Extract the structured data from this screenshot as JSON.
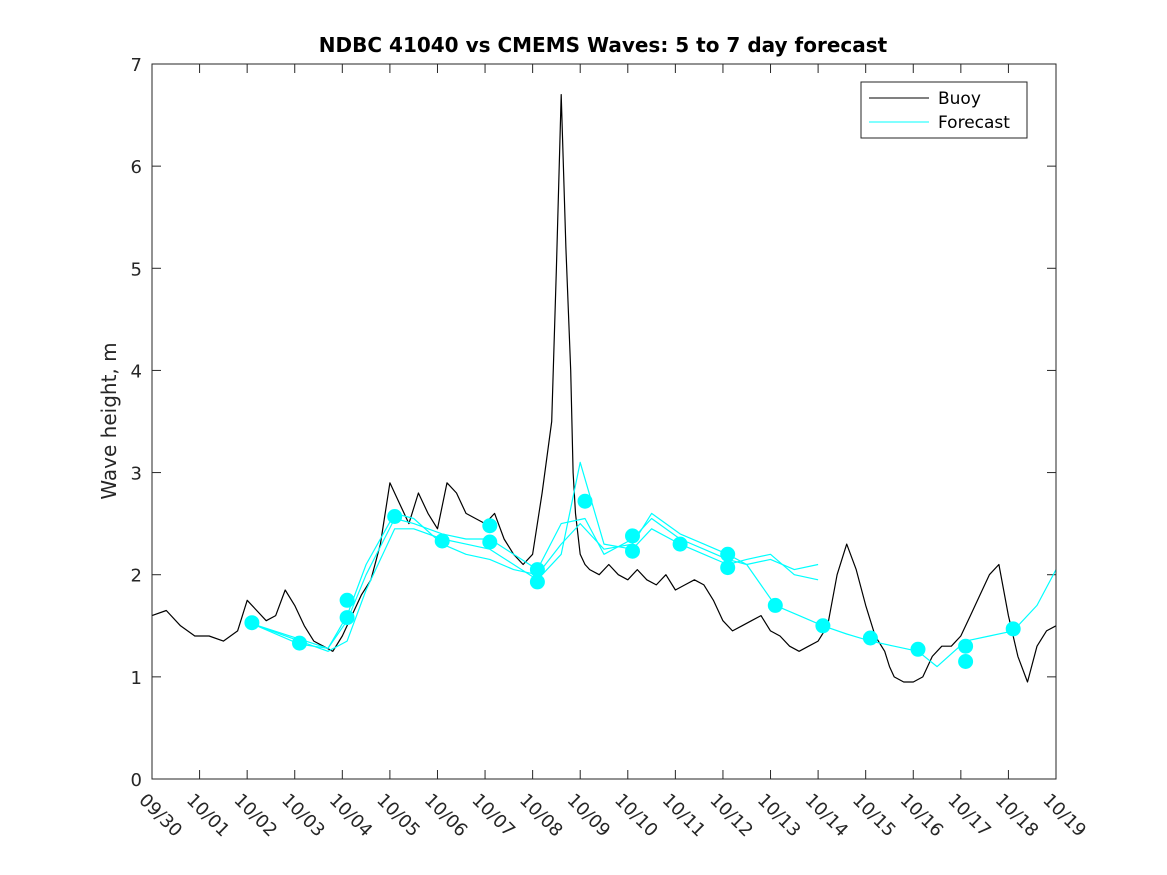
{
  "chart_data": {
    "type": "line",
    "title": "NDBC 41040 vs CMEMS Waves: 5 to 7 day forecast",
    "xlabel": "",
    "ylabel": "Wave height, m",
    "xlim": [
      0,
      19
    ],
    "ylim": [
      0,
      7
    ],
    "yticks": [
      0,
      1,
      2,
      3,
      4,
      5,
      6,
      7
    ],
    "xticks": [
      0,
      1,
      2,
      3,
      4,
      5,
      6,
      7,
      8,
      9,
      10,
      11,
      12,
      13,
      14,
      15,
      16,
      17,
      18,
      19
    ],
    "xtick_labels": [
      "09/30",
      "10/01",
      "10/02",
      "10/03",
      "10/04",
      "10/05",
      "10/06",
      "10/07",
      "10/08",
      "10/09",
      "10/10",
      "10/11",
      "10/12",
      "10/13",
      "10/14",
      "10/15",
      "10/16",
      "10/17",
      "10/18",
      "10/19"
    ],
    "legend": {
      "position": "top-right",
      "entries": [
        {
          "label": "Buoy",
          "color": "#000000"
        },
        {
          "label": "Forecast",
          "color": "#00ffff"
        }
      ]
    },
    "colors": {
      "buoy": "#000000",
      "forecast": "#00ffff",
      "marker": "#00ffff"
    },
    "series": [
      {
        "name": "Buoy",
        "x": [
          0,
          0.3,
          0.6,
          0.9,
          1.2,
          1.5,
          1.8,
          2.0,
          2.2,
          2.4,
          2.6,
          2.8,
          3.0,
          3.2,
          3.4,
          3.6,
          3.8,
          4.0,
          4.2,
          4.4,
          4.6,
          4.8,
          5.0,
          5.2,
          5.4,
          5.6,
          5.8,
          6.0,
          6.2,
          6.4,
          6.6,
          6.8,
          7.0,
          7.2,
          7.4,
          7.6,
          7.8,
          8.0,
          8.2,
          8.4,
          8.5,
          8.6,
          8.7,
          8.8,
          8.85,
          8.9,
          9.0,
          9.1,
          9.2,
          9.4,
          9.6,
          9.8,
          10.0,
          10.2,
          10.4,
          10.6,
          10.8,
          11.0,
          11.2,
          11.4,
          11.6,
          11.8,
          12.0,
          12.2,
          12.4,
          12.6,
          12.8,
          13.0,
          13.2,
          13.4,
          13.6,
          13.8,
          14.0,
          14.2,
          14.4,
          14.6,
          14.8,
          15.0,
          15.2,
          15.4,
          15.5,
          15.6,
          15.8,
          16.0,
          16.2,
          16.4,
          16.6,
          16.8,
          17.0,
          17.2,
          17.4,
          17.6,
          17.8,
          18.0,
          18.2,
          18.4,
          18.6,
          18.8,
          19.0
        ],
        "y": [
          1.6,
          1.65,
          1.5,
          1.4,
          1.4,
          1.35,
          1.45,
          1.75,
          1.65,
          1.55,
          1.6,
          1.85,
          1.7,
          1.5,
          1.35,
          1.3,
          1.25,
          1.4,
          1.6,
          1.8,
          1.95,
          2.3,
          2.9,
          2.7,
          2.5,
          2.8,
          2.6,
          2.45,
          2.9,
          2.8,
          2.6,
          2.55,
          2.5,
          2.6,
          2.35,
          2.2,
          2.1,
          2.2,
          2.8,
          3.5,
          5.0,
          6.7,
          5.2,
          4.0,
          3.0,
          2.6,
          2.2,
          2.1,
          2.05,
          2.0,
          2.1,
          2.0,
          1.95,
          2.05,
          1.95,
          1.9,
          2.0,
          1.85,
          1.9,
          1.95,
          1.9,
          1.75,
          1.55,
          1.45,
          1.5,
          1.55,
          1.6,
          1.45,
          1.4,
          1.3,
          1.25,
          1.3,
          1.35,
          1.5,
          2.0,
          2.3,
          2.05,
          1.7,
          1.4,
          1.25,
          1.1,
          1.0,
          0.95,
          0.95,
          1.0,
          1.2,
          1.3,
          1.3,
          1.4,
          1.6,
          1.8,
          2.0,
          2.1,
          1.6,
          1.2,
          0.95,
          1.3,
          1.45,
          1.5
        ]
      },
      {
        "name": "Forecast",
        "x": [
          2.1,
          3.1,
          3.7,
          4.1,
          4.5,
          5.1,
          5.5,
          6.1,
          6.6,
          7.1,
          7.6,
          8.1,
          8.6,
          9.1,
          9.5,
          10.1,
          10.5,
          11.1,
          11.6,
          12.1,
          12.5,
          13.1,
          13.6,
          14.1,
          14.6,
          15.1,
          15.6,
          16.1,
          16.5,
          17.1,
          17.6,
          18.1,
          18.6,
          19.0
        ],
        "y": [
          1.52,
          1.37,
          1.28,
          1.55,
          2.0,
          2.55,
          2.5,
          2.4,
          2.35,
          2.35,
          2.2,
          2.05,
          2.5,
          2.55,
          2.2,
          2.35,
          2.55,
          2.35,
          2.25,
          2.15,
          2.1,
          1.7,
          1.6,
          1.5,
          1.42,
          1.35,
          1.3,
          1.25,
          1.1,
          1.35,
          1.4,
          1.45,
          1.7,
          2.05
        ]
      },
      {
        "name": "Forecast",
        "x": [
          2.1,
          3.1,
          3.7,
          4.1,
          4.5,
          5.1,
          5.5,
          6.1,
          6.6,
          7.1,
          7.6,
          8.1,
          8.6,
          9.0,
          9.5,
          10.1,
          10.5,
          11.1,
          11.6,
          12.1,
          12.5,
          13.0,
          13.5,
          14.0
        ],
        "y": [
          1.52,
          1.35,
          1.25,
          1.35,
          1.85,
          2.45,
          2.45,
          2.35,
          2.3,
          2.25,
          2.1,
          1.95,
          2.2,
          3.1,
          2.3,
          2.25,
          2.45,
          2.3,
          2.2,
          2.1,
          2.15,
          2.2,
          2.0,
          1.95
        ]
      },
      {
        "name": "Forecast",
        "x": [
          2.1,
          3.1,
          3.7,
          4.1,
          4.5,
          5.1,
          5.5,
          6.1,
          6.6,
          7.1,
          7.6,
          8.1,
          8.6,
          9.0,
          9.5,
          10.1,
          10.5,
          11.1,
          11.6,
          12.1,
          12.5,
          13.0,
          13.5,
          14.0
        ],
        "y": [
          1.52,
          1.32,
          1.28,
          1.6,
          2.1,
          2.6,
          2.55,
          2.3,
          2.2,
          2.15,
          2.05,
          2.0,
          2.3,
          2.5,
          2.25,
          2.3,
          2.6,
          2.4,
          2.3,
          2.2,
          2.1,
          2.15,
          2.05,
          2.1
        ]
      }
    ],
    "markers": {
      "name": "Forecast",
      "x": [
        2.1,
        3.1,
        4.1,
        4.1,
        5.1,
        6.1,
        7.1,
        7.1,
        8.1,
        8.1,
        9.1,
        10.1,
        10.1,
        11.1,
        12.1,
        12.1,
        13.1,
        14.1,
        15.1,
        16.1,
        17.1,
        17.1,
        18.1
      ],
      "y": [
        1.53,
        1.33,
        1.75,
        1.58,
        2.57,
        2.33,
        2.48,
        2.32,
        2.05,
        1.93,
        2.72,
        2.38,
        2.23,
        2.3,
        2.2,
        2.07,
        1.7,
        1.5,
        1.38,
        1.27,
        1.3,
        1.15,
        1.47
      ]
    }
  }
}
